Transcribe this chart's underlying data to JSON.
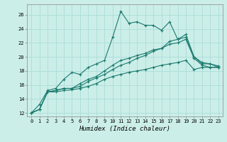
{
  "title": "",
  "xlabel": "Humidex (Indice chaleur)",
  "ylabel": "",
  "bg_color": "#cceee8",
  "grid_color": "#aaddd8",
  "line_color": "#1a7a6e",
  "xlim": [
    -0.5,
    23.5
  ],
  "ylim": [
    11.5,
    27.5
  ],
  "xticks": [
    0,
    1,
    2,
    3,
    4,
    5,
    6,
    7,
    8,
    9,
    10,
    11,
    12,
    13,
    14,
    15,
    16,
    17,
    18,
    19,
    20,
    21,
    22,
    23
  ],
  "yticks": [
    12,
    14,
    16,
    18,
    20,
    22,
    24,
    26
  ],
  "curve1_x": [
    0,
    1,
    2,
    3,
    4,
    5,
    6,
    7,
    8,
    9,
    10,
    11,
    12,
    13,
    14,
    15,
    16,
    17,
    18,
    19,
    20,
    21,
    22,
    23
  ],
  "curve1_y": [
    12.0,
    13.2,
    15.2,
    15.5,
    16.8,
    17.8,
    17.5,
    18.5,
    19.0,
    19.5,
    22.8,
    26.5,
    24.8,
    25.0,
    24.5,
    24.5,
    23.8,
    25.0,
    22.5,
    23.2,
    20.0,
    19.0,
    19.0,
    18.5
  ],
  "curve2_x": [
    0,
    1,
    2,
    3,
    4,
    5,
    6,
    7,
    8,
    9,
    10,
    11,
    12,
    13,
    14,
    15,
    16,
    17,
    18,
    19,
    20,
    21,
    22,
    23
  ],
  "curve2_y": [
    12.0,
    12.5,
    15.0,
    15.2,
    15.5,
    15.5,
    16.2,
    16.8,
    17.2,
    18.0,
    18.8,
    19.5,
    19.8,
    20.2,
    20.5,
    21.0,
    21.2,
    22.2,
    22.5,
    22.8,
    20.0,
    19.2,
    19.0,
    18.7
  ],
  "curve3_x": [
    0,
    1,
    2,
    3,
    4,
    5,
    6,
    7,
    8,
    9,
    10,
    11,
    12,
    13,
    14,
    15,
    16,
    17,
    18,
    19,
    20,
    21,
    22,
    23
  ],
  "curve3_y": [
    12.0,
    12.5,
    15.0,
    15.2,
    15.5,
    15.5,
    15.8,
    16.5,
    17.0,
    17.5,
    18.2,
    18.8,
    19.2,
    19.8,
    20.2,
    20.8,
    21.2,
    21.8,
    22.0,
    22.5,
    19.8,
    18.8,
    18.5,
    18.5
  ],
  "curve4_x": [
    0,
    1,
    2,
    3,
    4,
    5,
    6,
    7,
    8,
    9,
    10,
    11,
    12,
    13,
    14,
    15,
    16,
    17,
    18,
    19,
    20,
    21,
    22,
    23
  ],
  "curve4_y": [
    12.0,
    12.5,
    15.0,
    15.0,
    15.2,
    15.3,
    15.5,
    15.8,
    16.2,
    16.8,
    17.2,
    17.5,
    17.8,
    18.0,
    18.2,
    18.5,
    18.8,
    19.0,
    19.2,
    19.5,
    18.2,
    18.5,
    18.5,
    18.5
  ]
}
